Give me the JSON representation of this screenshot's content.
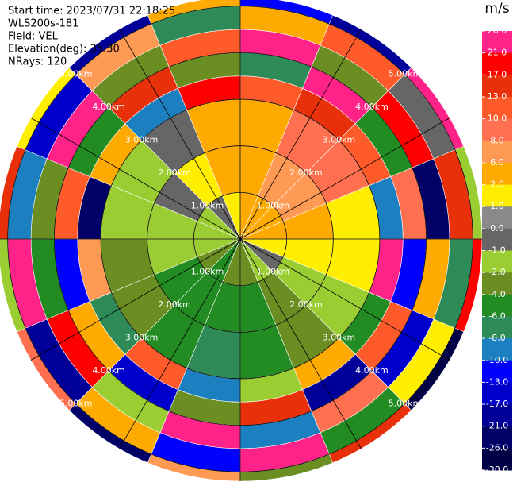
{
  "chart_data": {
    "type": "ppi",
    "header": [
      "Start time: 2023/07/31 22:18:25",
      "WLS200s-181",
      "Field: VEL",
      "Elevation(deg): 35.30",
      "NRays: 120"
    ],
    "units": "m/s",
    "range_edges": [
      0,
      1,
      2,
      3,
      3.5,
      4,
      4.5,
      5,
      5.2
    ],
    "rings": [
      {
        "value": 1,
        "label": "1.00km"
      },
      {
        "value": 2,
        "label": "2.00km"
      },
      {
        "value": 3,
        "label": "3.00km"
      },
      {
        "value": 4,
        "label": "4.00km"
      },
      {
        "value": 5,
        "label": "5.00km"
      }
    ],
    "values": [
      [
        2,
        4,
        5,
        12,
        -8,
        21,
        3,
        -13
      ],
      [
        2,
        6,
        9,
        15,
        26,
        -4,
        10,
        -21
      ],
      [
        2,
        7,
        8,
        12,
        -6,
        17,
        -1,
        26
      ],
      [
        3,
        4,
        1.5,
        -10,
        8,
        -26,
        13,
        -2
      ],
      [
        1.5,
        1.5,
        1.5,
        21,
        -13,
        3,
        -8,
        17
      ],
      [
        -0.5,
        -1.5,
        -1.5,
        -5,
        10,
        -17,
        1.5,
        -30
      ],
      [
        -1.5,
        -3,
        -3,
        4,
        -21,
        8,
        -6,
        13
      ],
      [
        -3,
        -5,
        -5,
        -1.5,
        15,
        -10,
        26,
        -3
      ],
      [
        -3,
        -5,
        -7,
        -9,
        -3,
        21,
        -13,
        7
      ],
      [
        -5,
        -5,
        -5,
        12,
        -17,
        -1.5,
        5,
        -26
      ],
      [
        -3,
        -5,
        -3,
        -8,
        3,
        17,
        -21,
        9
      ],
      [
        -1.5,
        -1.5,
        -3,
        6,
        -13,
        -5,
        21,
        -1.5
      ],
      [
        -1.5,
        -1.5,
        -1.5,
        -26,
        10,
        -3,
        -10,
        15
      ],
      [
        -1.5,
        -0.5,
        -1.5,
        3,
        -6,
        26,
        -17,
        1.5
      ],
      [
        -0.5,
        1.5,
        -0.5,
        -10,
        13,
        -2.5,
        7,
        -21
      ],
      [
        1.5,
        3,
        4,
        17,
        -3,
        10,
        -8,
        4
      ]
    ],
    "levels": [
      {
        "value": 26,
        "label": "26.0"
      },
      {
        "value": 21,
        "label": "21.0"
      },
      {
        "value": 17,
        "label": "17.0"
      },
      {
        "value": 13,
        "label": "13.0"
      },
      {
        "value": 10,
        "label": "10.0"
      },
      {
        "value": 8,
        "label": "8.0"
      },
      {
        "value": 6,
        "label": "6.0"
      },
      {
        "value": 2,
        "label": "2.0"
      },
      {
        "value": 1,
        "label": "1.0"
      },
      {
        "value": 0,
        "label": "0.0"
      },
      {
        "value": -1,
        "label": "-1.0"
      },
      {
        "value": -2,
        "label": "-2.0"
      },
      {
        "value": -4,
        "label": "-4.0"
      },
      {
        "value": -6,
        "label": "-6.0"
      },
      {
        "value": -8,
        "label": "-8.0"
      },
      {
        "value": -10,
        "label": "-10.0"
      },
      {
        "value": -13,
        "label": "-13.0"
      },
      {
        "value": -17,
        "label": "-17.0"
      },
      {
        "value": -21,
        "label": "-21.0"
      },
      {
        "value": -26,
        "label": "-26.0"
      },
      {
        "value": -30,
        "label": "-30.0"
      }
    ],
    "colors": [
      "#ff2288",
      "#ff0000",
      "#e8300a",
      "#ff5a2a",
      "#ff7050",
      "#ff9a55",
      "#ffaa00",
      "#ffee00",
      "#8a8a8a",
      "#666666",
      "#9acd32",
      "#6b8e23",
      "#228b22",
      "#2e8b57",
      "#1c7fc0",
      "#0000ff",
      "#0000cc",
      "#000099",
      "#000066",
      "#000044"
    ]
  }
}
